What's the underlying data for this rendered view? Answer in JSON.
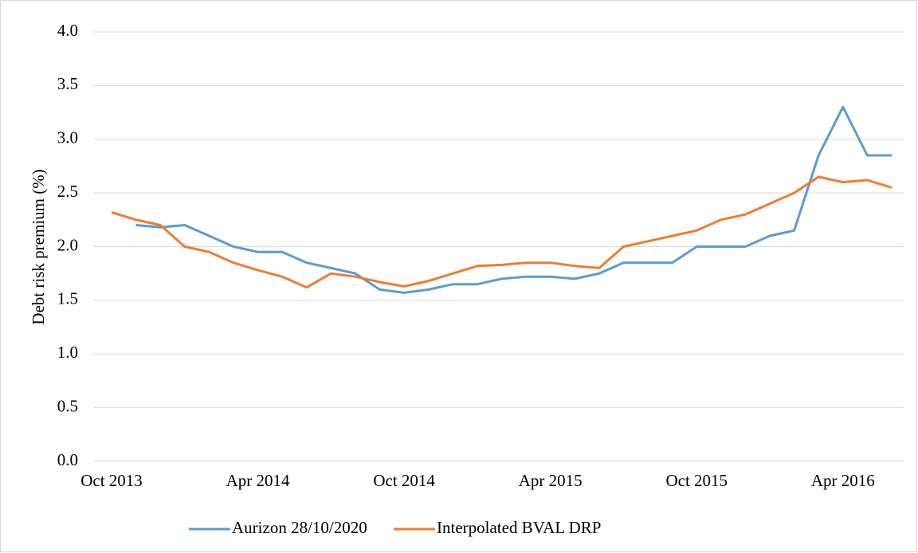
{
  "chart_data": {
    "type": "line",
    "y_label": "Debt risk premium (%)",
    "x": [
      "2013-10",
      "2013-11",
      "2013-12",
      "2014-01",
      "2014-02",
      "2014-03",
      "2014-04",
      "2014-05",
      "2014-06",
      "2014-07",
      "2014-08",
      "2014-09",
      "2014-10",
      "2014-11",
      "2014-12",
      "2015-01",
      "2015-02",
      "2015-03",
      "2015-04",
      "2015-05",
      "2015-06",
      "2015-07",
      "2015-08",
      "2015-09",
      "2015-10",
      "2015-11",
      "2015-12",
      "2016-01",
      "2016-02",
      "2016-03",
      "2016-04",
      "2016-05",
      "2016-06"
    ],
    "series": [
      {
        "name": "Aurizon 28/10/2020",
        "color": "#5b9bd5",
        "values": [
          null,
          2.2,
          2.18,
          2.2,
          2.1,
          2.0,
          1.95,
          1.95,
          1.85,
          1.8,
          1.75,
          1.6,
          1.57,
          1.6,
          1.65,
          1.65,
          1.7,
          1.72,
          1.72,
          1.7,
          1.75,
          1.85,
          1.85,
          1.85,
          2.0,
          2.0,
          2.0,
          2.1,
          2.15,
          2.85,
          3.3,
          2.85,
          2.85
        ]
      },
      {
        "name": "Interpolated BVAL DRP",
        "color": "#ed7d31",
        "values": [
          2.32,
          2.25,
          2.2,
          2.0,
          1.95,
          1.85,
          1.78,
          1.72,
          1.62,
          1.75,
          1.72,
          1.67,
          1.63,
          1.68,
          1.75,
          1.82,
          1.83,
          1.85,
          1.85,
          1.82,
          1.8,
          2.0,
          2.05,
          2.1,
          2.15,
          2.25,
          2.3,
          2.4,
          2.5,
          2.65,
          2.6,
          2.62,
          2.55
        ]
      }
    ],
    "xlim": [
      "2013-10",
      "2016-06"
    ],
    "xticks": [
      {
        "value": "2013-10",
        "label": "Oct 2013"
      },
      {
        "value": "2014-04",
        "label": "Apr 2014"
      },
      {
        "value": "2014-10",
        "label": "Oct 2014"
      },
      {
        "value": "2015-04",
        "label": "Apr 2015"
      },
      {
        "value": "2015-10",
        "label": "Oct 2015"
      },
      {
        "value": "2016-04",
        "label": "Apr 2016"
      }
    ],
    "ylim": [
      0,
      4
    ],
    "yticks": [
      {
        "value": 0,
        "label": "0.0"
      },
      0.5,
      {
        "value": 1,
        "label": "1.0"
      },
      1.5,
      {
        "value": 2,
        "label": "2.0"
      },
      2.5,
      {
        "value": 3,
        "label": "3.0"
      },
      3.5,
      {
        "value": 4,
        "label": "4.0"
      }
    ],
    "grid": true
  }
}
